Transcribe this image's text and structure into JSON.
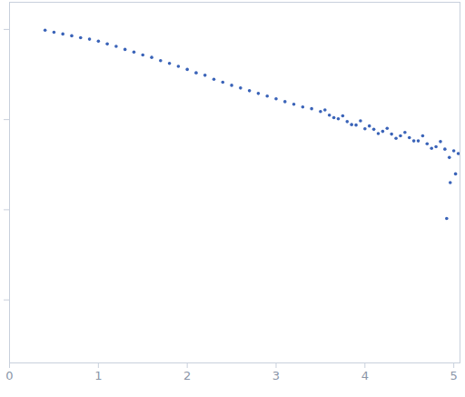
{
  "chart_data": {
    "type": "scatter",
    "log": "y",
    "tick_labels": "x",
    "color": "#3a63b8",
    "marker": "circle",
    "xlim": [
      0,
      5.07
    ],
    "xticks": [
      0,
      1,
      2,
      3,
      4,
      5
    ],
    "ylim": [
      0.0002,
      2
    ],
    "yticks": [
      0.001,
      0.01,
      0.1,
      1
    ],
    "x": [
      0.4,
      0.5,
      0.6,
      0.7,
      0.8,
      0.9,
      1.0,
      1.1,
      1.2,
      1.3,
      1.4,
      1.5,
      1.6,
      1.7,
      1.8,
      1.9,
      2.0,
      2.1,
      2.2,
      2.3,
      2.4,
      2.5,
      2.6,
      2.7,
      2.8,
      2.9,
      3.0,
      3.1,
      3.2,
      3.3,
      3.4,
      3.5,
      3.55,
      3.6,
      3.65,
      3.7,
      3.75,
      3.8,
      3.85,
      3.9,
      3.95,
      4.0,
      4.05,
      4.1,
      4.15,
      4.2,
      4.25,
      4.3,
      4.35,
      4.4,
      4.45,
      4.5,
      4.55,
      4.6,
      4.65,
      4.7,
      4.75,
      4.8,
      4.85,
      4.9,
      4.92,
      4.95,
      4.96,
      5.0,
      5.02,
      5.05
    ],
    "values": [
      0.98,
      0.93,
      0.89,
      0.85,
      0.81,
      0.78,
      0.74,
      0.69,
      0.65,
      0.6,
      0.56,
      0.52,
      0.49,
      0.45,
      0.42,
      0.39,
      0.36,
      0.33,
      0.31,
      0.28,
      0.26,
      0.24,
      0.224,
      0.209,
      0.195,
      0.182,
      0.17,
      0.158,
      0.148,
      0.138,
      0.132,
      0.123,
      0.128,
      0.112,
      0.105,
      0.102,
      0.11,
      0.095,
      0.088,
      0.087,
      0.097,
      0.079,
      0.085,
      0.078,
      0.07,
      0.074,
      0.08,
      0.069,
      0.062,
      0.066,
      0.072,
      0.063,
      0.058,
      0.058,
      0.066,
      0.054,
      0.048,
      0.05,
      0.057,
      0.047,
      0.008,
      0.038,
      0.02,
      0.045,
      0.025,
      0.042
    ]
  }
}
